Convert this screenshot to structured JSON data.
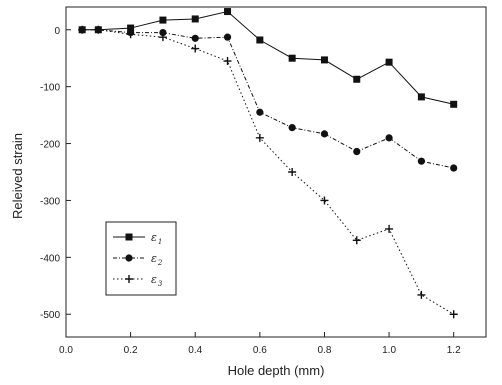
{
  "chart_data": {
    "type": "line",
    "title": "",
    "xlabel": "Hole depth (mm)",
    "ylabel": "Releived strain",
    "xlim": [
      0.0,
      1.3
    ],
    "ylim": [
      -540,
      40
    ],
    "xticks": [
      0.0,
      0.2,
      0.4,
      0.6,
      0.8,
      1.0,
      1.2
    ],
    "xtick_labels": [
      "0.0",
      "0.2",
      "0.4",
      "0.6",
      "0.8",
      "1.0",
      "1.2"
    ],
    "yticks": [
      0,
      -100,
      -200,
      -300,
      -400,
      -500
    ],
    "ytick_labels": [
      "0",
      "-100",
      "-200",
      "-300",
      "-400",
      "-500"
    ],
    "grid": false,
    "legend_position": "bottom-left",
    "series": [
      {
        "name": "ε1",
        "legend_symbol": "ε",
        "legend_subscript": "1",
        "marker": "square",
        "line_style": "solid",
        "x": [
          0.05,
          0.1,
          0.2,
          0.3,
          0.4,
          0.5,
          0.6,
          0.7,
          0.8,
          0.9,
          1.0,
          1.1,
          1.2
        ],
        "y": [
          0,
          0,
          3,
          17,
          19,
          32,
          -18,
          -50,
          -53,
          -87,
          -57,
          -118,
          -131
        ]
      },
      {
        "name": "ε2",
        "legend_symbol": "ε",
        "legend_subscript": "2",
        "marker": "circle",
        "line_style": "dashed",
        "x": [
          0.05,
          0.1,
          0.2,
          0.3,
          0.4,
          0.5,
          0.6,
          0.7,
          0.8,
          0.9,
          1.0,
          1.1,
          1.2
        ],
        "y": [
          0,
          0,
          -5,
          -5,
          -15,
          -13,
          -145,
          -172,
          -183,
          -214,
          -190,
          -231,
          -243
        ]
      },
      {
        "name": "ε3",
        "legend_symbol": "ε",
        "legend_subscript": "3",
        "marker": "cross",
        "line_style": "dotted",
        "x": [
          0.05,
          0.1,
          0.2,
          0.3,
          0.4,
          0.5,
          0.6,
          0.7,
          0.8,
          0.9,
          1.0,
          1.1,
          1.2
        ],
        "y": [
          0,
          0,
          -8,
          -13,
          -33,
          -55,
          -190,
          -250,
          -300,
          -370,
          -350,
          -466,
          -500
        ]
      }
    ]
  }
}
